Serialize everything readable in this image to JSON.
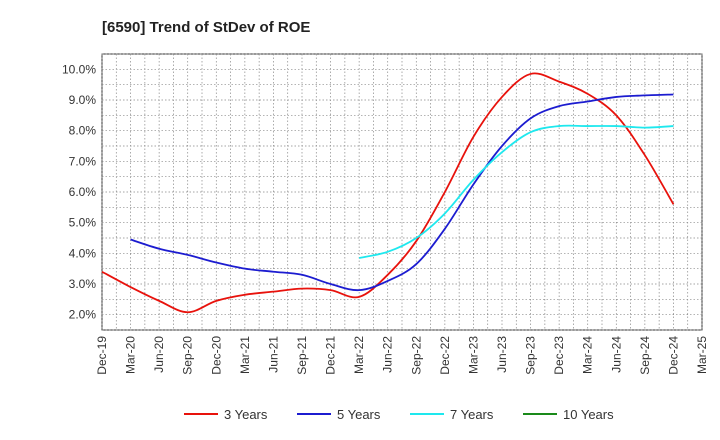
{
  "chart_data": {
    "type": "line",
    "title": "[6590]  Trend of StDev of ROE",
    "xlabel": "",
    "ylabel": "",
    "x_ticks": [
      "Dec-19",
      "Mar-20",
      "Jun-20",
      "Sep-20",
      "Dec-20",
      "Mar-21",
      "Jun-21",
      "Sep-21",
      "Dec-21",
      "Mar-22",
      "Jun-22",
      "Sep-22",
      "Dec-22",
      "Mar-23",
      "Jun-23",
      "Sep-23",
      "Dec-23",
      "Mar-24",
      "Jun-24",
      "Sep-24",
      "Dec-24",
      "Mar-25"
    ],
    "y_ticks": [
      "2.0%",
      "3.0%",
      "4.0%",
      "5.0%",
      "6.0%",
      "7.0%",
      "8.0%",
      "9.0%",
      "10.0%"
    ],
    "ylim": [
      1.5,
      10.5
    ],
    "grid": true,
    "legend_position": "bottom",
    "series": [
      {
        "name": "3 Years",
        "color": "#e8120c",
        "points": [
          [
            0,
            3.4
          ],
          [
            1,
            2.9
          ],
          [
            2,
            2.45
          ],
          [
            3,
            2.08
          ],
          [
            4,
            2.45
          ],
          [
            5,
            2.65
          ],
          [
            6,
            2.75
          ],
          [
            7,
            2.85
          ],
          [
            8,
            2.8
          ],
          [
            9,
            2.58
          ],
          [
            10,
            3.3
          ],
          [
            11,
            4.4
          ],
          [
            12,
            6.0
          ],
          [
            13,
            7.8
          ],
          [
            14,
            9.1
          ],
          [
            15,
            9.85
          ],
          [
            16,
            9.6
          ],
          [
            17,
            9.2
          ],
          [
            18,
            8.5
          ],
          [
            19,
            7.2
          ],
          [
            20,
            5.6
          ]
        ]
      },
      {
        "name": "5 Years",
        "color": "#1c1cd0",
        "points": [
          [
            1,
            4.45
          ],
          [
            2,
            4.15
          ],
          [
            3,
            3.95
          ],
          [
            4,
            3.7
          ],
          [
            5,
            3.5
          ],
          [
            6,
            3.4
          ],
          [
            7,
            3.3
          ],
          [
            8,
            3.0
          ],
          [
            9,
            2.8
          ],
          [
            10,
            3.1
          ],
          [
            11,
            3.65
          ],
          [
            12,
            4.8
          ],
          [
            13,
            6.25
          ],
          [
            14,
            7.5
          ],
          [
            15,
            8.4
          ],
          [
            16,
            8.8
          ],
          [
            17,
            8.95
          ],
          [
            18,
            9.1
          ],
          [
            19,
            9.15
          ],
          [
            20,
            9.18
          ]
        ]
      },
      {
        "name": "7 Years",
        "color": "#1ee8ee",
        "points": [
          [
            9,
            3.85
          ],
          [
            10,
            4.05
          ],
          [
            11,
            4.5
          ],
          [
            12,
            5.3
          ],
          [
            13,
            6.4
          ],
          [
            14,
            7.3
          ],
          [
            15,
            7.95
          ],
          [
            16,
            8.15
          ],
          [
            17,
            8.15
          ],
          [
            18,
            8.15
          ],
          [
            19,
            8.1
          ],
          [
            20,
            8.15
          ]
        ]
      },
      {
        "name": "10 Years",
        "color": "#1a8a1a",
        "points": []
      }
    ]
  }
}
